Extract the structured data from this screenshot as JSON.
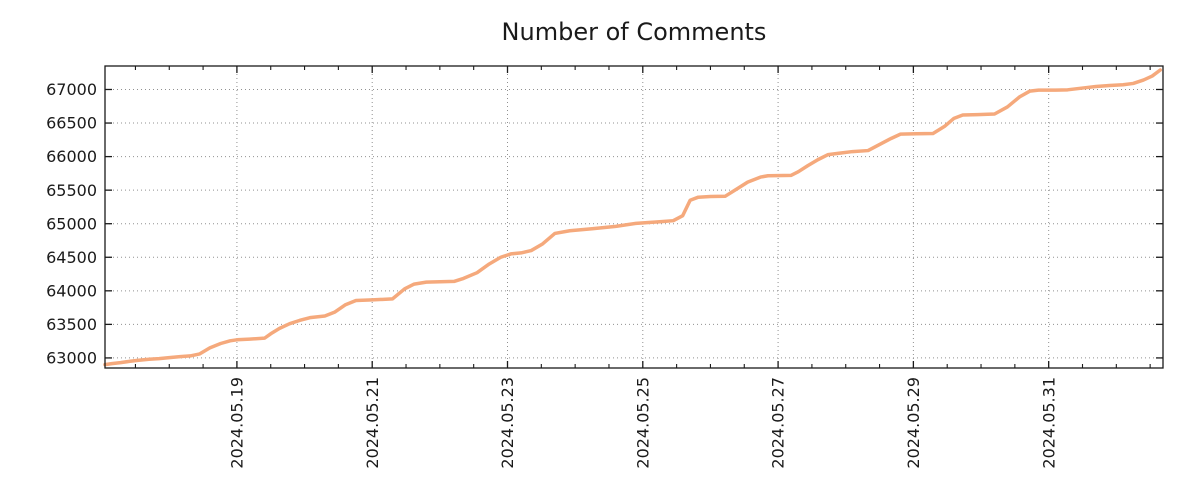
{
  "figure": {
    "background": "#ffffff"
  },
  "chart_data": {
    "type": "line",
    "title": "Number of Comments",
    "legend": null,
    "x_axis": {
      "unit": "days since 2024-05-17 00:00",
      "range": [
        0.05,
        15.69
      ],
      "major_ticks": [
        {
          "t": 2,
          "label": "2024.05.19"
        },
        {
          "t": 4,
          "label": "2024.05.21"
        },
        {
          "t": 6,
          "label": "2024.05.23"
        },
        {
          "t": 8,
          "label": "2024.05.25"
        },
        {
          "t": 10,
          "label": "2024.05.27"
        },
        {
          "t": 12,
          "label": "2024.05.29"
        },
        {
          "t": 14,
          "label": "2024.05.31"
        }
      ],
      "minor_tick_interval": 0.5,
      "label_rotation_deg": -90
    },
    "y_axis": {
      "range": [
        62850,
        67350
      ],
      "major_ticks": [
        63000,
        63500,
        64000,
        64500,
        65000,
        65500,
        66000,
        66500,
        67000
      ],
      "tick_step": 500
    },
    "grid": {
      "show": true,
      "style": "dotted",
      "color": "#909090"
    },
    "axis_color": "#1a1a1a",
    "text_color": "#1a1a1a",
    "series": [
      {
        "name": "comments",
        "color": "#f5a97c",
        "line_width": 3.5,
        "points": [
          [
            0.05,
            62900
          ],
          [
            0.15,
            62915
          ],
          [
            0.28,
            62930
          ],
          [
            0.42,
            62950
          ],
          [
            0.55,
            62965
          ],
          [
            0.7,
            62980
          ],
          [
            0.85,
            62990
          ],
          [
            1.0,
            63005
          ],
          [
            1.16,
            63020
          ],
          [
            1.31,
            63030
          ],
          [
            1.45,
            63060
          ],
          [
            1.6,
            63150
          ],
          [
            1.76,
            63215
          ],
          [
            1.9,
            63255
          ],
          [
            2.0,
            63270
          ],
          [
            2.19,
            63280
          ],
          [
            2.41,
            63295
          ],
          [
            2.5,
            63360
          ],
          [
            2.63,
            63440
          ],
          [
            2.78,
            63510
          ],
          [
            2.93,
            63560
          ],
          [
            3.08,
            63600
          ],
          [
            3.3,
            63625
          ],
          [
            3.45,
            63685
          ],
          [
            3.6,
            63790
          ],
          [
            3.76,
            63855
          ],
          [
            4.0,
            63865
          ],
          [
            4.3,
            63880
          ],
          [
            4.48,
            64030
          ],
          [
            4.62,
            64100
          ],
          [
            4.8,
            64130
          ],
          [
            5.21,
            64140
          ],
          [
            5.35,
            64185
          ],
          [
            5.55,
            64270
          ],
          [
            5.73,
            64400
          ],
          [
            5.9,
            64500
          ],
          [
            6.05,
            64550
          ],
          [
            6.2,
            64565
          ],
          [
            6.35,
            64600
          ],
          [
            6.52,
            64700
          ],
          [
            6.7,
            64855
          ],
          [
            6.92,
            64895
          ],
          [
            7.25,
            64925
          ],
          [
            7.6,
            64960
          ],
          [
            7.9,
            65005
          ],
          [
            8.25,
            65030
          ],
          [
            8.45,
            65045
          ],
          [
            8.59,
            65120
          ],
          [
            8.7,
            65350
          ],
          [
            8.82,
            65395
          ],
          [
            9.0,
            65405
          ],
          [
            9.22,
            65410
          ],
          [
            9.41,
            65530
          ],
          [
            9.55,
            65620
          ],
          [
            9.74,
            65695
          ],
          [
            9.85,
            65715
          ],
          [
            10.19,
            65720
          ],
          [
            10.3,
            65775
          ],
          [
            10.44,
            65865
          ],
          [
            10.59,
            65955
          ],
          [
            10.74,
            66030
          ],
          [
            10.9,
            66050
          ],
          [
            11.1,
            66075
          ],
          [
            11.33,
            66090
          ],
          [
            11.47,
            66165
          ],
          [
            11.67,
            66270
          ],
          [
            11.81,
            66335
          ],
          [
            12.05,
            66340
          ],
          [
            12.29,
            66345
          ],
          [
            12.46,
            66450
          ],
          [
            12.6,
            66570
          ],
          [
            12.73,
            66620
          ],
          [
            12.95,
            66625
          ],
          [
            13.2,
            66635
          ],
          [
            13.39,
            66740
          ],
          [
            13.57,
            66890
          ],
          [
            13.72,
            66975
          ],
          [
            13.85,
            66990
          ],
          [
            14.1,
            66990
          ],
          [
            14.28,
            66995
          ],
          [
            14.53,
            67025
          ],
          [
            14.7,
            67045
          ],
          [
            14.9,
            67060
          ],
          [
            15.1,
            67070
          ],
          [
            15.25,
            67090
          ],
          [
            15.4,
            67140
          ],
          [
            15.53,
            67200
          ],
          [
            15.65,
            67290
          ]
        ]
      }
    ]
  }
}
